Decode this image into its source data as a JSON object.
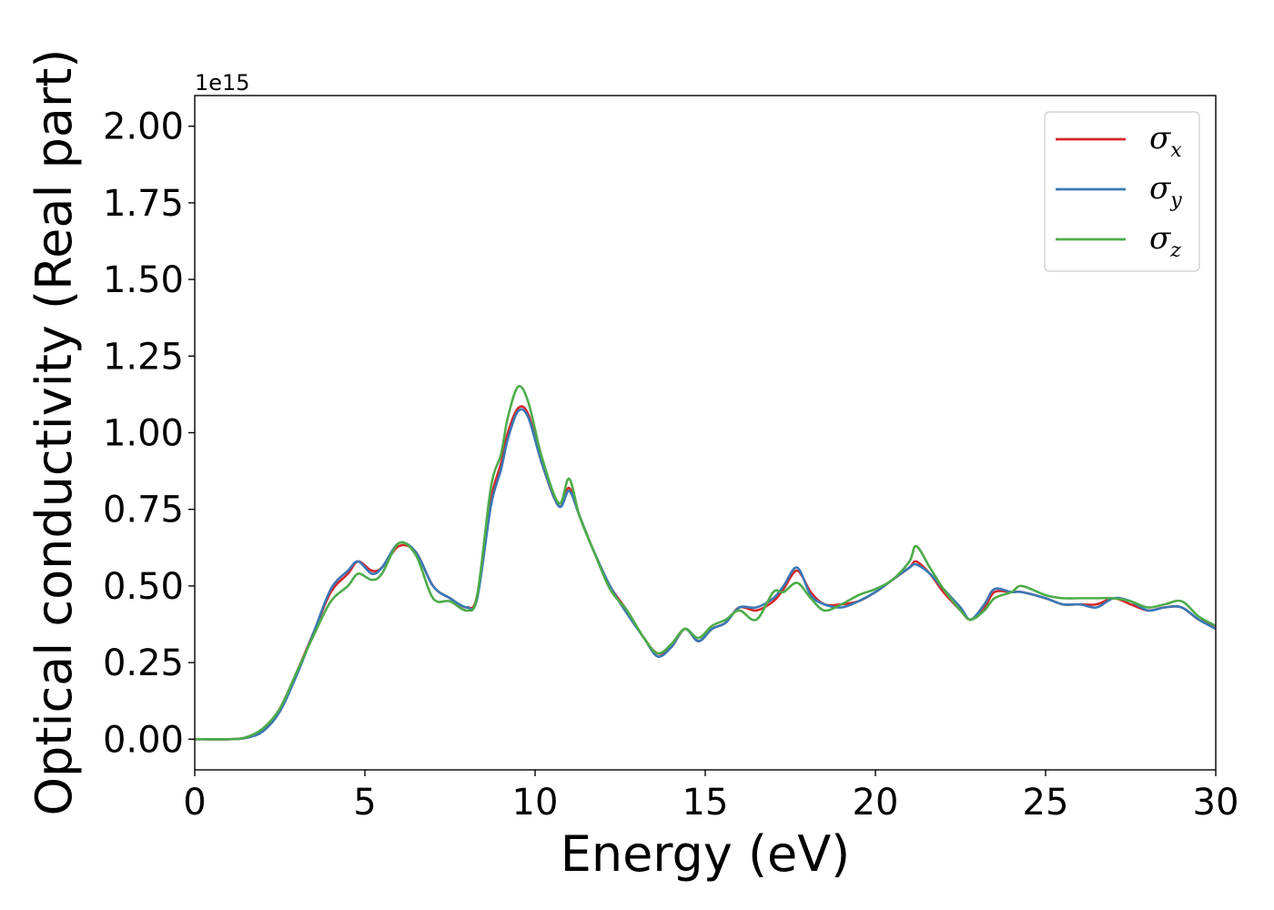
{
  "chart_data": {
    "type": "line",
    "title": "",
    "xlabel": "Energy (eV)",
    "ylabel": "Optical conductivity (Real part)",
    "y_offset_label": "1e15",
    "xlim": [
      0,
      30
    ],
    "ylim": [
      -0.1,
      2.1
    ],
    "x_ticks": [
      0,
      5,
      10,
      15,
      20,
      25,
      30
    ],
    "x_tick_labels": [
      "0",
      "5",
      "10",
      "15",
      "20",
      "25",
      "30"
    ],
    "y_ticks": [
      0.0,
      0.25,
      0.5,
      0.75,
      1.0,
      1.25,
      1.5,
      1.75,
      2.0
    ],
    "y_tick_labels": [
      "0.00",
      "0.25",
      "0.50",
      "0.75",
      "1.00",
      "1.25",
      "1.50",
      "1.75",
      "2.00"
    ],
    "grid": false,
    "legend_position": "top-right",
    "x": [
      0,
      1,
      1.5,
      2,
      2.5,
      3,
      3.5,
      4,
      4.5,
      4.8,
      5.2,
      5.5,
      6,
      6.5,
      7,
      7.5,
      8,
      8.3,
      8.7,
      9,
      9.2,
      9.5,
      9.8,
      10.2,
      10.7,
      11,
      11.3,
      11.7,
      12.2,
      12.7,
      13.2,
      13.6,
      14,
      14.4,
      14.8,
      15.2,
      15.6,
      16,
      16.5,
      17,
      17.3,
      17.7,
      18.1,
      18.5,
      19,
      19.5,
      20,
      20.5,
      21,
      21.2,
      21.6,
      22,
      22.5,
      22.8,
      23.2,
      23.5,
      24,
      24.3,
      25,
      25.5,
      26,
      26.5,
      27,
      27.5,
      28,
      28.5,
      29,
      29.5,
      30
    ],
    "series": [
      {
        "name": "x",
        "color": "#d62728",
        "values": [
          0.0,
          0.0,
          0.005,
          0.03,
          0.1,
          0.22,
          0.35,
          0.48,
          0.54,
          0.58,
          0.55,
          0.56,
          0.63,
          0.61,
          0.5,
          0.46,
          0.43,
          0.47,
          0.78,
          0.9,
          1.0,
          1.08,
          1.06,
          0.9,
          0.76,
          0.82,
          0.73,
          0.62,
          0.5,
          0.42,
          0.33,
          0.28,
          0.3,
          0.36,
          0.32,
          0.36,
          0.38,
          0.43,
          0.42,
          0.45,
          0.49,
          0.55,
          0.48,
          0.44,
          0.44,
          0.45,
          0.48,
          0.52,
          0.56,
          0.58,
          0.54,
          0.48,
          0.42,
          0.39,
          0.43,
          0.48,
          0.48,
          0.48,
          0.46,
          0.44,
          0.44,
          0.44,
          0.46,
          0.44,
          0.42,
          0.43,
          0.43,
          0.39,
          0.37
        ]
      },
      {
        "name": "y",
        "color": "#3a78b5",
        "values": [
          0.0,
          0.0,
          0.004,
          0.025,
          0.09,
          0.21,
          0.35,
          0.49,
          0.55,
          0.58,
          0.54,
          0.56,
          0.64,
          0.61,
          0.5,
          0.46,
          0.43,
          0.46,
          0.76,
          0.88,
          0.98,
          1.07,
          1.05,
          0.9,
          0.76,
          0.81,
          0.73,
          0.62,
          0.5,
          0.41,
          0.33,
          0.27,
          0.3,
          0.36,
          0.32,
          0.36,
          0.38,
          0.43,
          0.43,
          0.46,
          0.5,
          0.56,
          0.47,
          0.44,
          0.43,
          0.45,
          0.48,
          0.52,
          0.56,
          0.57,
          0.54,
          0.49,
          0.43,
          0.39,
          0.44,
          0.49,
          0.48,
          0.48,
          0.46,
          0.44,
          0.44,
          0.43,
          0.46,
          0.45,
          0.42,
          0.43,
          0.43,
          0.39,
          0.36
        ]
      },
      {
        "name": "z",
        "color": "#4dac4a",
        "values": [
          0.0,
          0.0,
          0.006,
          0.035,
          0.1,
          0.22,
          0.34,
          0.45,
          0.5,
          0.54,
          0.52,
          0.54,
          0.64,
          0.6,
          0.46,
          0.45,
          0.42,
          0.47,
          0.82,
          0.93,
          1.05,
          1.15,
          1.1,
          0.92,
          0.77,
          0.85,
          0.73,
          0.62,
          0.49,
          0.42,
          0.33,
          0.28,
          0.31,
          0.36,
          0.33,
          0.37,
          0.39,
          0.42,
          0.39,
          0.48,
          0.48,
          0.51,
          0.46,
          0.42,
          0.44,
          0.47,
          0.49,
          0.52,
          0.58,
          0.63,
          0.56,
          0.49,
          0.42,
          0.39,
          0.42,
          0.46,
          0.48,
          0.5,
          0.47,
          0.46,
          0.46,
          0.46,
          0.46,
          0.45,
          0.43,
          0.44,
          0.45,
          0.4,
          0.37
        ]
      }
    ]
  }
}
